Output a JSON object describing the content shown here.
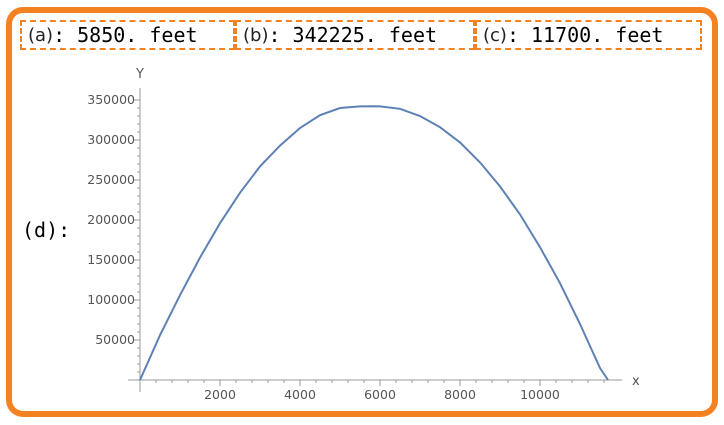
{
  "answers": {
    "a": {
      "label": "(a)",
      "sep": ":",
      "value": "5850. feet"
    },
    "b": {
      "label": "(b)",
      "sep": ":",
      "value": "342225. feet"
    },
    "c": {
      "label": "(c)",
      "sep": ":",
      "value": "11700. feet"
    },
    "d": {
      "label": "(d)",
      "sep": ":"
    }
  },
  "colors": {
    "frame": "#f58220",
    "curve": "#5e81b5",
    "axis": "#999999",
    "tick_label": "#555555"
  },
  "chart_data": {
    "type": "line",
    "title": "",
    "xlabel": "x",
    "ylabel": "Y",
    "xlim": [
      0,
      12000
    ],
    "ylim": [
      0,
      360000
    ],
    "xticks": [
      2000,
      4000,
      6000,
      8000,
      10000
    ],
    "xtick_labels": [
      "2000",
      "4000",
      "6000",
      "8000",
      "10000"
    ],
    "yticks": [
      50000,
      100000,
      150000,
      200000,
      250000,
      300000,
      350000
    ],
    "ytick_labels": [
      "50000",
      "100000",
      "150000",
      "200000",
      "250000",
      "300000",
      "350000"
    ],
    "series": [
      {
        "x": [
          0,
          500,
          1000,
          1500,
          2000,
          2500,
          3000,
          3500,
          4000,
          4500,
          5000,
          5500,
          5850,
          6000,
          6500,
          7000,
          7500,
          8000,
          8500,
          9000,
          9500,
          10000,
          10500,
          11000,
          11500,
          11700
        ],
        "values": [
          0,
          56000,
          106000,
          153000,
          196000,
          234000,
          267000,
          293000,
          315000,
          331000,
          340000,
          342000,
          342225,
          342000,
          339000,
          330000,
          316000,
          297000,
          272000,
          242000,
          207000,
          166000,
          121000,
          70000,
          15000,
          0
        ]
      }
    ]
  }
}
